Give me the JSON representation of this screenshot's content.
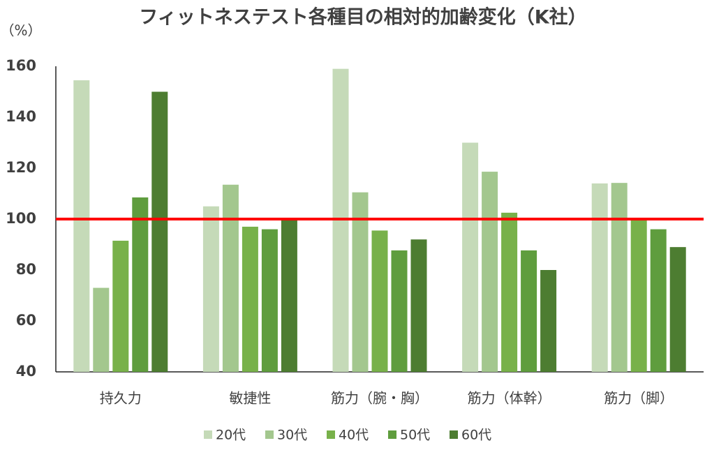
{
  "chart_data": {
    "type": "bar",
    "title": "フィットネステスト各種目の相対的加齢変化（K社）",
    "y_label": "（%）",
    "categories": [
      "持久力",
      "敏捷性",
      "筋力（腕・胸）",
      "筋力（体幹）",
      "筋力（脚）"
    ],
    "series": [
      {
        "name": "20代",
        "color": "#c5dab8",
        "values": [
          154.5,
          105,
          159,
          130,
          114
        ]
      },
      {
        "name": "30代",
        "color": "#a3c78e",
        "values": [
          73,
          113.5,
          110.5,
          118.6,
          114.2
        ]
      },
      {
        "name": "40代",
        "color": "#78b14a",
        "values": [
          91.5,
          97,
          95.5,
          102.5,
          100.5
        ]
      },
      {
        "name": "50代",
        "color": "#5f9d3e",
        "values": [
          108.5,
          96,
          87.7,
          87.7,
          96
        ]
      },
      {
        "name": "60代",
        "color": "#4d7d31",
        "values": [
          150,
          100,
          92,
          80,
          89
        ]
      }
    ],
    "reference_line": 100,
    "reference_color": "#ff0000",
    "ylim": [
      40,
      160
    ],
    "yticks": [
      40,
      60,
      80,
      100,
      120,
      140,
      160
    ],
    "grid": false
  }
}
